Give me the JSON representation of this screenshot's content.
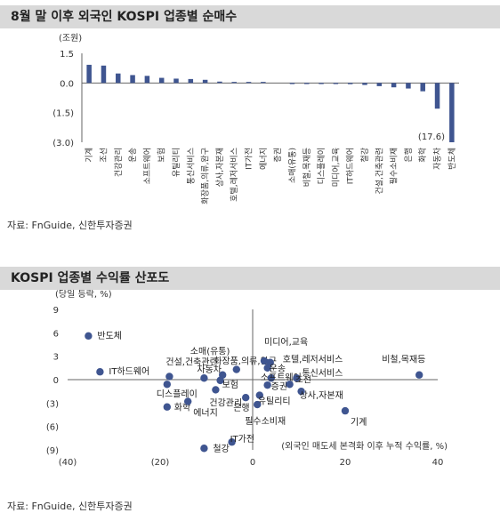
{
  "title1": "8월 말 이후 외국인 KOSPI 업종별 순매수",
  "title2": "KOSPI 업종별 수익률 산포도",
  "source1": "자료: FnGuide, 신한투자증권",
  "source2": "자료: FnGuide, 신한투자증권",
  "colors": {
    "bar": "#3f5590",
    "dot": "#3f5590",
    "title_bg": "#d9d9d9"
  },
  "chart_data": [
    {
      "type": "bar",
      "ylabel": "(조원)",
      "ylim": [
        -3.0,
        1.5
      ],
      "yticks": [
        1.5,
        0.0,
        -1.5,
        -3.0
      ],
      "ytick_labels": [
        "1.5",
        "0.0",
        "(1.5)",
        "(3.0)"
      ],
      "categories": [
        "기계",
        "조선",
        "건강관리",
        "운송",
        "소프트웨어",
        "보험",
        "유틸리티",
        "통신서비스",
        "화장품,의류,완구",
        "상사,자본재",
        "호텔,레저서비스",
        "IT가전",
        "에너지",
        "증권",
        "소매(유통)",
        "비철,목재등",
        "디스플레이",
        "미디어,교육",
        "IT하드웨어",
        "철강",
        "건설,건축관련",
        "필수소비재",
        "은행",
        "화학",
        "자동차",
        "반도체"
      ],
      "values": [
        0.92,
        0.88,
        0.48,
        0.4,
        0.36,
        0.26,
        0.22,
        0.2,
        0.16,
        0.07,
        0.03,
        0.02,
        0.01,
        0.0,
        -0.01,
        -0.01,
        -0.02,
        -0.03,
        -0.06,
        -0.1,
        -0.16,
        -0.22,
        -0.28,
        -0.42,
        -1.3,
        -3.0
      ],
      "annotation": "(17.6)"
    },
    {
      "type": "scatter",
      "ylabel": "(당일 등락, %)",
      "xlabel": "(외국인 매도세 본격화 이후 누적 수익률, %)",
      "xlim": [
        -40,
        40
      ],
      "ylim": [
        -9,
        9
      ],
      "xticks": [
        -40,
        -20,
        0,
        20,
        40
      ],
      "xtick_labels": [
        "(40)",
        "(20)",
        "0",
        "20",
        "40"
      ],
      "yticks": [
        9,
        6,
        3,
        0,
        -3,
        -6,
        -9
      ],
      "ytick_labels": [
        "9",
        "6",
        "3",
        "0",
        "(3)",
        "(6)",
        "(9)"
      ],
      "points": [
        {
          "label": "반도체",
          "x": -35.5,
          "y": 5.6
        },
        {
          "label": "IT하드웨어",
          "x": -33.0,
          "y": 1.0
        },
        {
          "label": "건설,건축관련",
          "x": -18.0,
          "y": 0.4
        },
        {
          "label": "자동차",
          "x": -10.5,
          "y": 0.2
        },
        {
          "label": "화장품,의류,완구",
          "x": -6.5,
          "y": 0.6
        },
        {
          "label": "소매(유통)",
          "x": -3.5,
          "y": 1.3
        },
        {
          "label": "미디어,교육",
          "x": 2.5,
          "y": 2.4
        },
        {
          "label": "호텔,레저서비스",
          "x": 3.8,
          "y": 2.2
        },
        {
          "label": "운송",
          "x": 3.2,
          "y": 1.5
        },
        {
          "label": "소프트웨어",
          "x": 4.0,
          "y": 0.2
        },
        {
          "label": "통신서비스",
          "x": 9.5,
          "y": 0.2
        },
        {
          "label": "디스플레이",
          "x": -18.5,
          "y": -0.6
        },
        {
          "label": "보험",
          "x": -7.0,
          "y": -0.1
        },
        {
          "label": "증권",
          "x": 3.2,
          "y": -0.7
        },
        {
          "label": "조선",
          "x": 8.0,
          "y": -0.6
        },
        {
          "label": "건강관리",
          "x": -8.0,
          "y": -1.3
        },
        {
          "label": "상사,자본재",
          "x": 10.5,
          "y": -1.5
        },
        {
          "label": "화학",
          "x": -18.5,
          "y": -3.5
        },
        {
          "label": "에너지",
          "x": -14.0,
          "y": -2.8
        },
        {
          "label": "은행",
          "x": -1.5,
          "y": -2.3
        },
        {
          "label": "유틸리티",
          "x": 1.5,
          "y": -2.0
        },
        {
          "label": "필수소비재",
          "x": 1.0,
          "y": -3.2
        },
        {
          "label": "기계",
          "x": 20.0,
          "y": -4.0
        },
        {
          "label": "IT가전",
          "x": -4.5,
          "y": -8.0
        },
        {
          "label": "철강",
          "x": -10.5,
          "y": -8.8
        },
        {
          "label": "비철,목재등",
          "x": 36.0,
          "y": 0.6
        }
      ]
    }
  ]
}
